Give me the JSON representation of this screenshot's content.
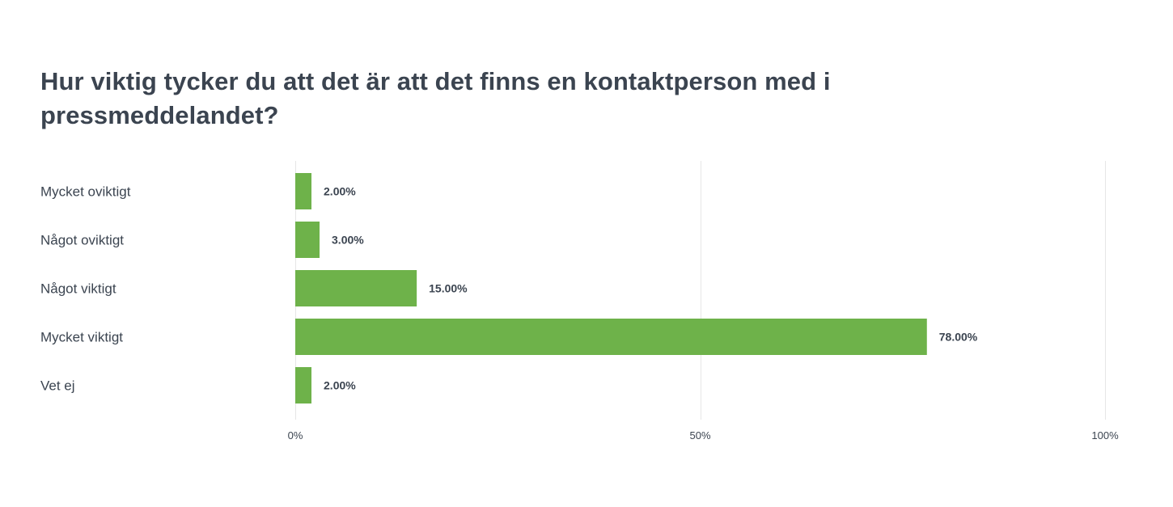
{
  "chart_data": {
    "type": "bar",
    "orientation": "horizontal",
    "title": "Hur viktig tycker du att det är att det finns en kontaktperson med i pressmeddelandet?",
    "categories": [
      "Mycket oviktigt",
      "Något oviktigt",
      "Något viktigt",
      "Mycket viktigt",
      "Vet ej"
    ],
    "values": [
      2,
      3,
      15,
      78,
      2
    ],
    "value_labels": [
      "2.00%",
      "3.00%",
      "15.00%",
      "78.00%",
      "2.00%"
    ],
    "xlim": [
      0,
      100
    ],
    "x_ticks": [
      0,
      50,
      100
    ],
    "x_tick_labels": [
      "0%",
      "50%",
      "100%"
    ],
    "xlabel": "",
    "ylabel": "",
    "grid": true,
    "legend": "none",
    "bar_color": "#6eb24a"
  }
}
